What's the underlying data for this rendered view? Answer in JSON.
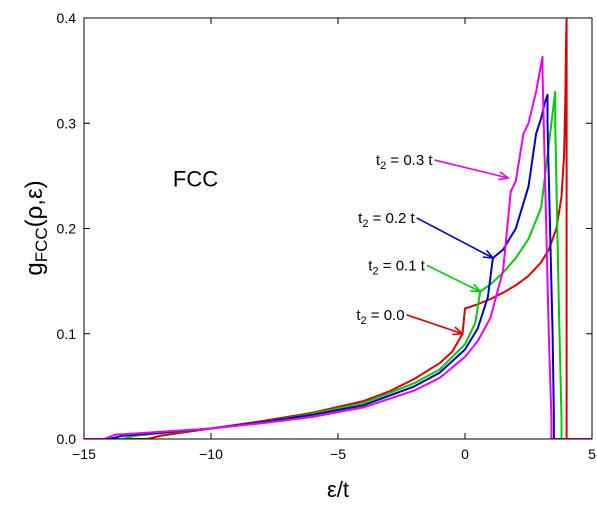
{
  "chart_data": {
    "type": "line",
    "title": "",
    "xlabel": "ε/t",
    "ylabel_main": "g",
    "ylabel_sub": "FCC",
    "ylabel_tail": "(ρ,ε)",
    "xlim": [
      -15,
      5
    ],
    "ylim": [
      0,
      0.4
    ],
    "xticks": [
      -15,
      -10,
      -5,
      0,
      5
    ],
    "xtick_labels": [
      "−15",
      "−10",
      "−5",
      "0",
      "5"
    ],
    "yticks": [
      0,
      0.1,
      0.2,
      0.3,
      0.4
    ],
    "ytick_labels": [
      "0.0",
      "0.1",
      "0.2",
      "0.3",
      "0.4"
    ],
    "grid": false,
    "text_label": {
      "text": "FCC",
      "x": -11.5,
      "y": 0.24
    },
    "series": [
      {
        "color": "#dd0000",
        "label_main": "t",
        "label_sub": "2",
        "label_tail": " = 0.0",
        "label_anchor": [
          -2.3,
          0.118
        ],
        "arrow_to": [
          -0.1,
          0.1
        ],
        "x": [
          -15,
          -12.5,
          -12,
          -10,
          -8,
          -6,
          -4,
          -3,
          -2,
          -1,
          -0.5,
          -0.1,
          0,
          0.5,
          1,
          1.5,
          2,
          2.5,
          3,
          3.3,
          3.6,
          3.8,
          3.9,
          3.95,
          3.98,
          4,
          4,
          5
        ],
        "y": [
          0,
          0,
          0.003,
          0.01,
          0.017,
          0.025,
          0.036,
          0.045,
          0.057,
          0.072,
          0.083,
          0.1,
          0.124,
          0.128,
          0.133,
          0.139,
          0.146,
          0.155,
          0.168,
          0.18,
          0.2,
          0.23,
          0.27,
          0.32,
          0.38,
          0.4,
          0,
          0
        ]
      },
      {
        "color": "#00cc00",
        "label_main": "t",
        "label_sub": "2",
        "label_tail": " = 0.1 t",
        "label_anchor": [
          -1.5,
          0.165
        ],
        "arrow_to": [
          0.6,
          0.14
        ],
        "x": [
          -15,
          -13.5,
          -13,
          -10,
          -8,
          -6,
          -4,
          -2,
          -1,
          0,
          0.4,
          0.6,
          1,
          1.5,
          2,
          2.5,
          3,
          3.2,
          3.4,
          3.55,
          3.55,
          3.7,
          3.8,
          3.8,
          5
        ],
        "y": [
          0,
          0,
          0.003,
          0.01,
          0.016,
          0.024,
          0.034,
          0.053,
          0.066,
          0.09,
          0.11,
          0.14,
          0.147,
          0.158,
          0.172,
          0.19,
          0.22,
          0.26,
          0.3,
          0.33,
          0.3,
          0.12,
          0.02,
          0,
          0
        ]
      },
      {
        "color": "#0000cc",
        "label_main": "t",
        "label_sub": "2",
        "label_tail": " = 0.2 t",
        "label_anchor": [
          -1.9,
          0.21
        ],
        "arrow_to": [
          1.1,
          0.172
        ],
        "x": [
          -15,
          -14,
          -13.5,
          -10,
          -8,
          -6,
          -4,
          -2,
          -1,
          0,
          0.5,
          0.9,
          1.1,
          1.5,
          2,
          2.5,
          2.8,
          3,
          3.15,
          3.25,
          3.25,
          3.45,
          3.5,
          3.5,
          5
        ],
        "y": [
          0,
          0,
          0.003,
          0.01,
          0.016,
          0.023,
          0.032,
          0.05,
          0.063,
          0.085,
          0.105,
          0.135,
          0.172,
          0.18,
          0.2,
          0.24,
          0.29,
          0.305,
          0.32,
          0.327,
          0.3,
          0.1,
          0.02,
          0,
          0
        ]
      },
      {
        "color": "#ee00ee",
        "label_main": "t",
        "label_sub": "2",
        "label_tail": " = 0.3 t",
        "label_anchor": [
          -1.2,
          0.265
        ],
        "arrow_to": [
          1.7,
          0.248
        ],
        "x": [
          -15,
          -14.2,
          -13.8,
          -10,
          -8,
          -6,
          -4,
          -2,
          -1,
          0,
          0.5,
          1,
          1.5,
          1.8,
          2,
          2.3,
          2.5,
          2.8,
          3.05,
          3.05,
          3.3,
          3.4,
          3.4,
          5
        ],
        "y": [
          0,
          0,
          0.004,
          0.01,
          0.015,
          0.021,
          0.03,
          0.046,
          0.058,
          0.078,
          0.093,
          0.115,
          0.16,
          0.235,
          0.245,
          0.29,
          0.3,
          0.33,
          0.363,
          0.35,
          0.1,
          0.02,
          0,
          0
        ]
      }
    ]
  }
}
